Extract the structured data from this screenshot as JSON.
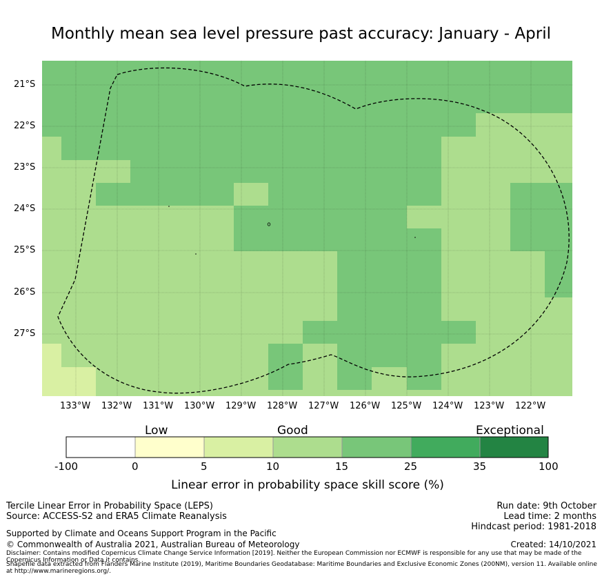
{
  "title": "Monthly mean sea level pressure past accuracy: January - April",
  "map": {
    "lat_labels": [
      "21°S",
      "22°S",
      "23°S",
      "24°S",
      "25°S",
      "26°S",
      "27°S"
    ],
    "lon_labels": [
      "133°W",
      "132°W",
      "131°W",
      "130°W",
      "129°W",
      "128°W",
      "127°W",
      "126°W",
      "125°W",
      "124°W",
      "123°W",
      "122°W"
    ],
    "lon_range": [
      -133.8,
      -121.0
    ],
    "lat_range": [
      -28.33,
      -20.58
    ],
    "region_outline": "Pitcairn Islands EEZ (dashed)"
  },
  "colorbar": {
    "categories": [
      "Low",
      "Good",
      "Exceptional"
    ],
    "ticks": [
      "-100",
      "0",
      "5",
      "10",
      "15",
      "25",
      "35",
      "100"
    ],
    "colors": [
      "#ffffff",
      "#ffffcc",
      "#d9f0a3",
      "#addd8e",
      "#78c679",
      "#41ab5d",
      "#238443"
    ],
    "label": "Linear error in probability space skill score (%)"
  },
  "colors": {
    "low": "#d9f0a3",
    "good": "#addd8e",
    "very_good": "#78c679"
  },
  "footer": {
    "line1": "Tercile Linear Error in Probability Space (LEPS)",
    "line2": "Source: ACCESS-S2 and ERA5 Climate Reanalysis",
    "supported": "Supported by Climate and Oceans Support Program in the Pacific",
    "copyright": "© Commonwealth of Australia 2021, Australian Bureau of Meteorology",
    "disclaimer1": "Disclaimer: Contains modified Copernicus Climate Change Service Information [2019]. Neither the European Commission nor ECMWF is responsible for any use that may be made of the Copernicus Information or Data it contains.",
    "disclaimer2": "Shapefile data extracted from Flanders Marine Institute (2019), Maritime Boundaries Geodatabase: Maritime Boundaries and Exclusive Economic Zones (200NM), version 11. Available online at http://www.marineregions.org/.",
    "run_date": "Run date: 9th October",
    "lead_time": "Lead time: 2 months",
    "hindcast": "Hindcast period: 1981-2018",
    "created": "Created: 14/10/2021"
  }
}
